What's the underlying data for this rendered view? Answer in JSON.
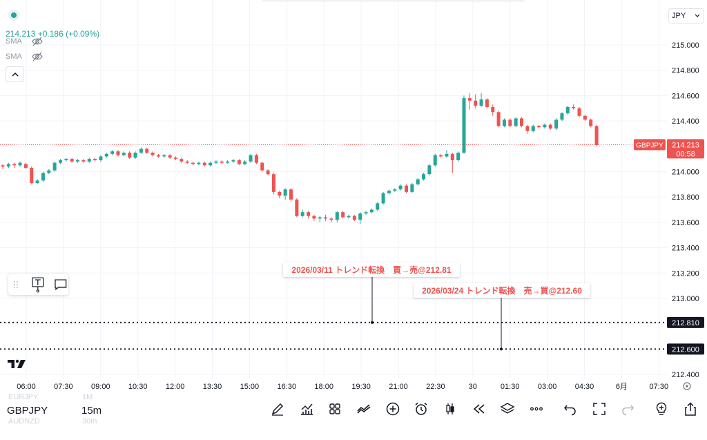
{
  "symbol": {
    "ticker": "GBPJPY",
    "price": "214.213",
    "change": "+0.186",
    "change_pct": "(+0.09%)",
    "countdown": "00:58",
    "prev_ticker": "EURJPY",
    "next_ticker": "AUDNZD"
  },
  "indicators": [
    {
      "label": "SMA",
      "visibility_icon": "eye-off-icon"
    },
    {
      "label": "SMA",
      "visibility_icon": "eye-off-icon"
    }
  ],
  "currency": "JPY",
  "timeframe": {
    "current": "15m",
    "prev": "1M",
    "next": "30m"
  },
  "colors": {
    "up": "#26a69a",
    "down": "#ef5350",
    "label_dark": "#131722",
    "accent": "#26a69a"
  },
  "annotations": [
    {
      "text": "2026/03/11 トレンド転換　買→売@212.81",
      "price": 212.81,
      "price_label": "212.810"
    },
    {
      "text": "2026/03/24 トレンド転換　売→買@212.60",
      "price": 212.6,
      "price_label": "212.600"
    }
  ],
  "chart_data": {
    "type": "candlestick",
    "y_ticks": [
      "215.000",
      "214.800",
      "214.600",
      "214.400",
      "214.200",
      "214.000",
      "213.800",
      "213.600",
      "213.400",
      "213.200",
      "213.000",
      "212.800",
      "212.600",
      "212.400"
    ],
    "x_ticks": [
      "06:00",
      "07:30",
      "09:00",
      "10:30",
      "12:00",
      "13:30",
      "15:00",
      "16:30",
      "18:00",
      "19:30",
      "21:00",
      "22:30",
      "30",
      "01:30",
      "03:00",
      "04:30",
      "6月",
      "07:30"
    ],
    "ylim": [
      212.4,
      215.05
    ],
    "last_price": 214.213,
    "candles": [
      [
        214.05,
        214.04,
        214.06,
        214.02
      ],
      [
        214.04,
        214.06,
        214.07,
        214.03
      ],
      [
        214.06,
        214.05,
        214.07,
        214.03
      ],
      [
        214.05,
        214.07,
        214.08,
        214.04
      ],
      [
        214.06,
        214.03,
        214.07,
        214.02
      ],
      [
        214.03,
        213.91,
        214.04,
        213.9
      ],
      [
        213.91,
        213.93,
        213.94,
        213.9
      ],
      [
        213.93,
        213.99,
        214.0,
        213.92
      ],
      [
        213.99,
        214.01,
        214.02,
        213.98
      ],
      [
        214.01,
        214.07,
        214.08,
        214.0
      ],
      [
        214.07,
        214.09,
        214.1,
        214.06
      ],
      [
        214.09,
        214.1,
        214.11,
        214.08
      ],
      [
        214.1,
        214.08,
        214.11,
        214.07
      ],
      [
        214.08,
        214.09,
        214.1,
        214.07
      ],
      [
        214.09,
        214.08,
        214.1,
        214.07
      ],
      [
        214.08,
        214.1,
        214.11,
        214.07
      ],
      [
        214.1,
        214.09,
        214.11,
        214.08
      ],
      [
        214.09,
        214.12,
        214.13,
        214.08
      ],
      [
        214.12,
        214.14,
        214.15,
        214.11
      ],
      [
        214.14,
        214.16,
        214.17,
        214.13
      ],
      [
        214.16,
        214.13,
        214.17,
        214.12
      ],
      [
        214.13,
        214.15,
        214.16,
        214.12
      ],
      [
        214.15,
        214.11,
        214.16,
        214.1
      ],
      [
        214.11,
        214.15,
        214.16,
        214.1
      ],
      [
        214.15,
        214.18,
        214.19,
        214.14
      ],
      [
        214.18,
        214.15,
        214.19,
        214.14
      ],
      [
        214.15,
        214.13,
        214.16,
        214.12
      ],
      [
        214.13,
        214.12,
        214.14,
        214.11
      ],
      [
        214.12,
        214.13,
        214.14,
        214.11
      ],
      [
        214.13,
        214.11,
        214.14,
        214.1
      ],
      [
        214.11,
        214.1,
        214.12,
        214.09
      ],
      [
        214.1,
        214.08,
        214.11,
        214.07
      ],
      [
        214.08,
        214.07,
        214.09,
        214.06
      ],
      [
        214.07,
        214.06,
        214.08,
        214.05
      ],
      [
        214.06,
        214.07,
        214.08,
        214.05
      ],
      [
        214.07,
        214.05,
        214.08,
        214.04
      ],
      [
        214.05,
        214.07,
        214.08,
        214.04
      ],
      [
        214.07,
        214.08,
        214.09,
        214.06
      ],
      [
        214.08,
        214.07,
        214.09,
        214.06
      ],
      [
        214.07,
        214.08,
        214.09,
        214.06
      ],
      [
        214.08,
        214.09,
        214.1,
        214.07
      ],
      [
        214.09,
        214.06,
        214.1,
        214.05
      ],
      [
        214.06,
        214.08,
        214.09,
        214.05
      ],
      [
        214.08,
        214.13,
        214.14,
        214.07
      ],
      [
        214.13,
        214.07,
        214.14,
        214.06
      ],
      [
        214.07,
        214.01,
        214.08,
        214.0
      ],
      [
        214.01,
        213.98,
        214.02,
        213.97
      ],
      [
        213.98,
        213.84,
        213.99,
        213.82
      ],
      [
        213.84,
        213.81,
        213.85,
        213.79
      ],
      [
        213.81,
        213.86,
        213.87,
        213.78
      ],
      [
        213.86,
        213.78,
        213.87,
        213.76
      ],
      [
        213.78,
        213.65,
        213.79,
        213.64
      ],
      [
        213.65,
        213.68,
        213.7,
        213.64
      ],
      [
        213.68,
        213.65,
        213.69,
        213.63
      ],
      [
        213.65,
        213.63,
        213.66,
        213.61
      ],
      [
        213.63,
        213.64,
        213.65,
        213.6
      ],
      [
        213.64,
        213.63,
        213.66,
        213.61
      ],
      [
        213.63,
        213.62,
        213.64,
        213.6
      ],
      [
        213.62,
        213.68,
        213.69,
        213.6
      ],
      [
        213.68,
        213.64,
        213.69,
        213.63
      ],
      [
        213.64,
        213.65,
        213.66,
        213.63
      ],
      [
        213.65,
        213.62,
        213.66,
        213.61
      ],
      [
        213.62,
        213.67,
        213.68,
        213.59
      ],
      [
        213.67,
        213.68,
        213.69,
        213.66
      ],
      [
        213.68,
        213.7,
        213.71,
        213.67
      ],
      [
        213.7,
        213.75,
        213.76,
        213.69
      ],
      [
        213.75,
        213.83,
        213.84,
        213.74
      ],
      [
        213.83,
        213.85,
        213.86,
        213.82
      ],
      [
        213.85,
        213.86,
        213.87,
        213.84
      ],
      [
        213.86,
        213.89,
        213.9,
        213.85
      ],
      [
        213.89,
        213.84,
        213.9,
        213.83
      ],
      [
        213.84,
        213.9,
        213.91,
        213.83
      ],
      [
        213.9,
        213.94,
        213.95,
        213.89
      ],
      [
        213.94,
        213.98,
        213.99,
        213.93
      ],
      [
        213.98,
        214.05,
        214.06,
        213.97
      ],
      [
        214.05,
        214.13,
        214.14,
        214.04
      ],
      [
        214.13,
        214.12,
        214.14,
        214.11
      ],
      [
        214.12,
        214.14,
        214.17,
        214.11
      ],
      [
        214.14,
        214.09,
        214.15,
        213.99
      ],
      [
        214.09,
        214.15,
        214.16,
        214.08
      ],
      [
        214.15,
        214.58,
        214.6,
        214.14
      ],
      [
        214.58,
        214.56,
        214.62,
        214.49
      ],
      [
        214.56,
        214.52,
        214.61,
        214.5
      ],
      [
        214.52,
        214.57,
        214.62,
        214.51
      ],
      [
        214.57,
        214.51,
        214.58,
        214.5
      ],
      [
        214.51,
        214.47,
        214.53,
        214.44
      ],
      [
        214.47,
        214.36,
        214.48,
        214.35
      ],
      [
        214.36,
        214.41,
        214.42,
        214.35
      ],
      [
        214.41,
        214.36,
        214.42,
        214.35
      ],
      [
        214.36,
        214.42,
        214.43,
        214.35
      ],
      [
        214.42,
        214.36,
        214.43,
        214.35
      ],
      [
        214.36,
        214.32,
        214.37,
        214.3
      ],
      [
        214.32,
        214.36,
        214.37,
        214.31
      ],
      [
        214.36,
        214.35,
        214.37,
        214.34
      ],
      [
        214.35,
        214.37,
        214.38,
        214.34
      ],
      [
        214.37,
        214.34,
        214.38,
        214.33
      ],
      [
        214.34,
        214.41,
        214.42,
        214.33
      ],
      [
        214.41,
        214.46,
        214.47,
        214.4
      ],
      [
        214.46,
        214.51,
        214.52,
        214.45
      ],
      [
        214.51,
        214.5,
        214.53,
        214.49
      ],
      [
        214.5,
        214.44,
        214.51,
        214.43
      ],
      [
        214.44,
        214.41,
        214.45,
        214.4
      ],
      [
        214.41,
        214.36,
        214.42,
        214.35
      ],
      [
        214.36,
        214.21,
        214.37,
        214.2
      ]
    ]
  }
}
